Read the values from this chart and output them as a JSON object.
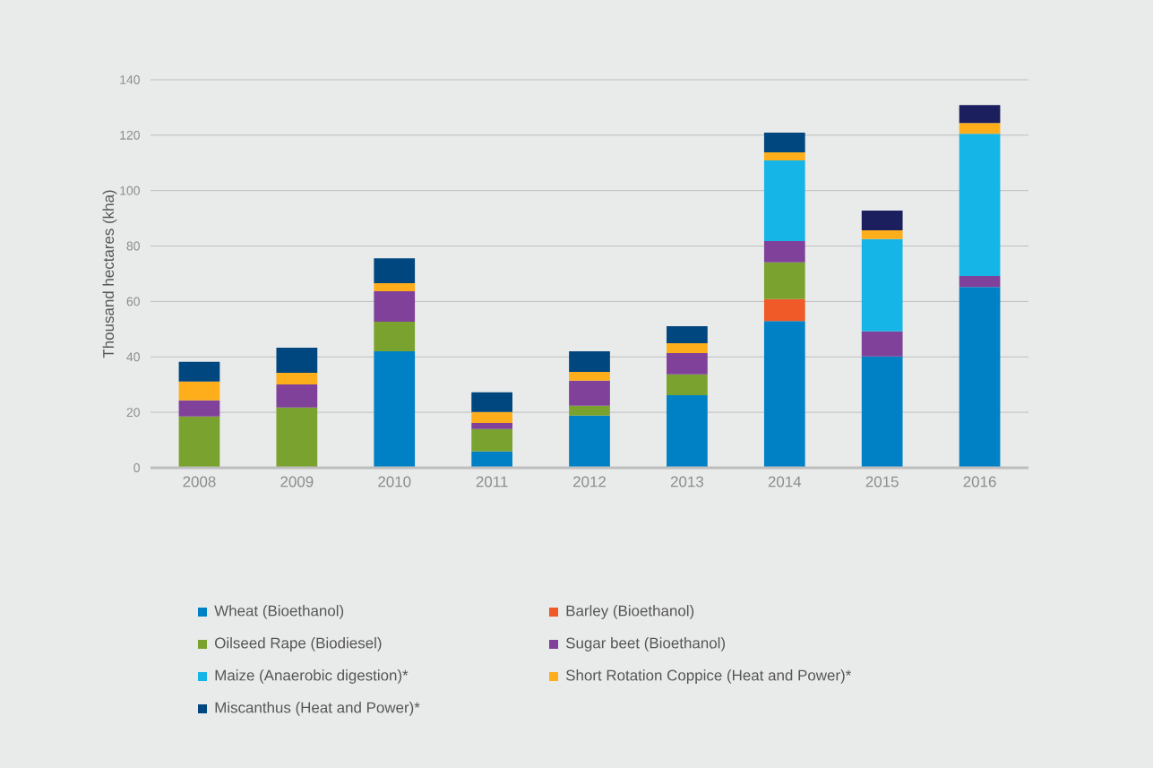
{
  "chart_data": {
    "type": "bar",
    "stacked": true,
    "ylabel": "Thousand hectares (kha)",
    "categories": [
      "2008",
      "2009",
      "2010",
      "2011",
      "2012",
      "2013",
      "2014",
      "2015",
      "2016"
    ],
    "ylim": [
      0,
      140
    ],
    "yticks": [
      0,
      20,
      40,
      60,
      80,
      100,
      120,
      140
    ],
    "grid": "y",
    "legend": "bottom",
    "series": [
      {
        "name": "Wheat (Bioethanol)",
        "color": "#0081c6",
        "values": [
          0,
          0,
          42.0,
          5.9,
          18.8,
          26.2,
          52.9,
          40.2,
          65.2
        ]
      },
      {
        "name": "Barley (Bioethanol)",
        "color": "#ef5a28",
        "values": [
          0,
          0,
          0,
          0,
          0,
          0,
          8.0,
          0,
          0
        ]
      },
      {
        "name": "Oilseed Rape (Biodiesel)",
        "color": "#7aa22f",
        "values": [
          18.5,
          21.7,
          10.7,
          8.1,
          3.6,
          7.5,
          13.2,
          0,
          0
        ]
      },
      {
        "name": "Sugar beet (Bioethanol)",
        "color": "#7f4199",
        "values": [
          5.8,
          8.4,
          11.0,
          2.2,
          9.0,
          7.7,
          7.7,
          9.0,
          4.0
        ]
      },
      {
        "name": "Maize (Anaerobic digestion)*",
        "color": "#16b5e8",
        "values": [
          0,
          0,
          0,
          0,
          0,
          0,
          29.1,
          33.3,
          51.3
        ]
      },
      {
        "name": "Short Rotation Coppice (Heat and Power)*",
        "color": "#fdae1a",
        "values": [
          6.8,
          4.2,
          2.9,
          3.9,
          3.2,
          3.5,
          2.9,
          3.2,
          3.9
        ]
      },
      {
        "name": "Miscanthus (Heat and Power)*",
        "color": "#00467f",
        "colors": [
          "#00467f",
          "#00467f",
          "#00467f",
          "#00467f",
          "#00467f",
          "#00467f",
          "#00467f",
          "#1b1f5e",
          "#1b1f5e"
        ],
        "values": [
          7.1,
          9.0,
          9.0,
          7.1,
          7.4,
          6.2,
          7.1,
          7.1,
          6.5
        ]
      }
    ]
  }
}
